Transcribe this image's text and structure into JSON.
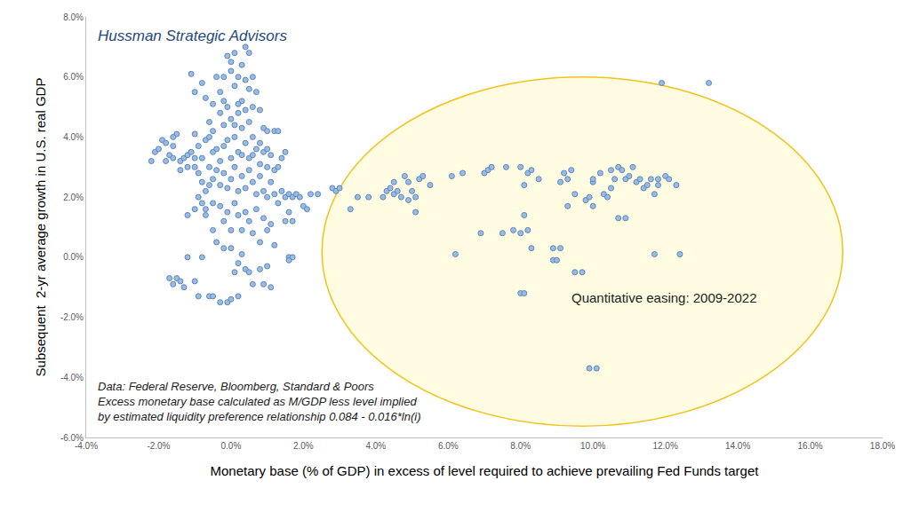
{
  "chart_data": {
    "type": "scatter",
    "marker": "circle",
    "color": "#9bbbe0",
    "grid": false,
    "xlabel": "Monetary base (% of GDP) in excess of level required to achieve prevailing Fed Funds target",
    "ylabel": "Subsequent  2-yr average growth in U.S. real GDP",
    "annotations": [
      {
        "text": "Hussman Strategic Advisors"
      },
      {
        "text": "Quantitative easing: 2009-2022"
      },
      {
        "text": [
          "Data: Federal Reserve, Bloomberg, Standard & Poors",
          "Excess monetary base calculated as M/GDP less level implied",
          "by estimated liquidity preference relationship 0.084 - 0.016*ln(i)"
        ]
      }
    ],
    "xlim": [
      -4,
      18
    ],
    "xticks": [
      {
        "value": -4,
        "label": "-4.0%"
      },
      {
        "value": -2,
        "label": "-2.0%"
      },
      {
        "value": 0,
        "label": "0.0%"
      },
      {
        "value": 2,
        "label": "2.0%"
      },
      {
        "value": 4,
        "label": "4.0%"
      },
      {
        "value": 6,
        "label": "6.0%"
      },
      {
        "value": 8,
        "label": "8.0%"
      },
      {
        "value": 10,
        "label": "10.0%"
      },
      {
        "value": 12,
        "label": "12.0%"
      },
      {
        "value": 14,
        "label": "14.0%"
      },
      {
        "value": 16,
        "label": "16.0%"
      },
      {
        "value": 18,
        "label": "18.0%"
      }
    ],
    "ylim": [
      -6,
      8
    ],
    "yticks": [
      {
        "value": -6,
        "label": "-6.0%"
      },
      {
        "value": -4,
        "label": "-4.0%"
      },
      {
        "value": -2,
        "label": "-2.0%"
      },
      {
        "value": 0,
        "label": "0.0%"
      },
      {
        "value": 2,
        "label": "2.0%"
      },
      {
        "value": 4,
        "label": "4.0%"
      },
      {
        "value": 6,
        "label": "6.0%"
      },
      {
        "value": 8,
        "label": "8.0%"
      }
    ],
    "x": [
      -2.2,
      -2.1,
      -2.0,
      -1.9,
      -1.8,
      -1.7,
      -1.6,
      -1.5,
      -1.6,
      -1.4,
      -1.3,
      -1.2,
      -1.1,
      -1.0,
      -1.7,
      -1.6,
      -1.5,
      -1.4,
      -1.3,
      -1.2,
      -1.0,
      -0.9,
      -0.8,
      -0.6,
      -0.5,
      -0.7,
      -0.5,
      -0.3,
      -0.1,
      0.0,
      0.2,
      0.2,
      0.4,
      0.5,
      0.6,
      0.8,
      1.0,
      1.1,
      0.9,
      1.6,
      1.6,
      1.7,
      -1.1,
      -1.0,
      -0.8,
      -0.7,
      -0.4,
      -0.3,
      -0.2,
      -0.1,
      0.0,
      0.0,
      0.1,
      0.2,
      0.3,
      0.3,
      0.4,
      0.5,
      0.5,
      0.6,
      0.4,
      -0.2,
      0.1,
      0.7,
      -0.5,
      0.2,
      0.6,
      0.5,
      0.8,
      0.9,
      1.0,
      1.2,
      1.3,
      1.5,
      1.4,
      -1.0,
      -0.9,
      -0.8,
      -0.7,
      -0.6,
      -0.5,
      -0.4,
      -0.3,
      -0.2,
      -0.1,
      0.0,
      0.1,
      0.2,
      0.3,
      0.4,
      0.5,
      0.6,
      0.7,
      0.8,
      0.9,
      1.0,
      1.1,
      1.2,
      -1.0,
      -0.9,
      -0.8,
      -0.7,
      -0.6,
      -0.5,
      -0.4,
      -0.3,
      -0.2,
      -0.1,
      0.0,
      0.1,
      0.2,
      0.3,
      0.4,
      0.5,
      0.6,
      0.7,
      0.8,
      0.9,
      1.0,
      1.1,
      1.2,
      1.3,
      1.4,
      1.5,
      1.6,
      1.7,
      1.8,
      1.9,
      2.0,
      2.1,
      2.2,
      2.4,
      1.6,
      1.7,
      1.5,
      -0.9,
      -0.7,
      -0.5,
      -0.3,
      -0.2,
      -0.1,
      0.0,
      0.1,
      0.2,
      0.3,
      0.4,
      0.5,
      0.6,
      0.7,
      0.8,
      0.9,
      1.0,
      1.1,
      1.2,
      -0.4,
      -0.2,
      0.0,
      0.1,
      0.3,
      -0.6,
      -0.3,
      0.2,
      0.4,
      0.1,
      -0.1,
      -1.2,
      -1.4,
      -1.6,
      -1.8,
      -1.2,
      -1.0,
      -0.8,
      -0.6,
      0.6,
      0.8,
      1.0,
      1.3,
      0.3,
      -0.5,
      0.0,
      -0.2,
      2.8,
      2.9,
      3.0,
      3.3,
      3.5,
      3.8,
      4.2,
      4.3,
      4.4,
      4.5,
      4.5,
      4.6,
      4.7,
      4.8,
      4.9,
      4.9,
      5.0,
      5.1,
      5.1,
      5.2,
      5.3,
      5.5,
      6.1,
      6.4,
      6.2,
      6.9,
      7.0,
      7.1,
      7.2,
      7.5,
      7.6,
      7.8,
      8.0,
      8.0,
      8.1,
      8.1,
      8.2,
      8.2,
      8.0,
      8.1,
      8.3,
      8.5,
      8.3,
      8.9,
      8.9,
      9.0,
      9.1,
      9.1,
      9.2,
      9.3,
      9.4,
      9.3,
      9.5,
      9.5,
      9.7,
      9.8,
      9.9,
      10.0,
      10.0,
      10.0,
      9.9,
      10.1,
      10.2,
      10.3,
      10.4,
      10.5,
      10.5,
      10.6,
      10.7,
      10.7,
      10.9,
      10.8,
      10.9,
      11.0,
      11.1,
      11.2,
      11.3,
      11.4,
      11.5,
      11.6,
      11.7,
      11.8,
      11.8,
      11.7,
      11.9,
      12.0,
      12.1,
      12.3,
      12.4,
      13.2
    ],
    "values": [
      3.2,
      3.5,
      3.6,
      3.9,
      3.8,
      3.4,
      3.7,
      4.1,
      4.0,
      3.2,
      3.3,
      3.4,
      3.5,
      3.3,
      -0.7,
      -0.9,
      -0.7,
      -0.8,
      -1.0,
      0.0,
      -0.8,
      -1.3,
      0.0,
      -1.3,
      -1.3,
      1.4,
      0.9,
      -1.5,
      -1.5,
      -1.4,
      -1.3,
      -0.2,
      -0.4,
      -0.5,
      -0.9,
      -0.4,
      -0.3,
      -1.0,
      -0.9,
      0.0,
      -0.1,
      0.0,
      6.1,
      5.5,
      5.8,
      5.3,
      6.0,
      5.5,
      6.0,
      6.7,
      6.5,
      6.2,
      6.8,
      6.0,
      6.4,
      5.2,
      7.0,
      6.8,
      5.6,
      6.0,
      5.9,
      5.2,
      5.7,
      5.5,
      5.1,
      5.1,
      5.0,
      4.5,
      4.9,
      4.3,
      4.2,
      4.2,
      4.2,
      3.5,
      3.3,
      4.1,
      3.7,
      3.3,
      3.9,
      4.5,
      4.2,
      3.6,
      4.8,
      4.4,
      3.9,
      4.6,
      4.0,
      3.5,
      4.3,
      3.8,
      3.3,
      4.0,
      3.6,
      3.1,
      3.5,
      3.0,
      3.4,
      2.9,
      3.0,
      2.8,
      2.5,
      2.2,
      3.0,
      2.6,
      2.9,
      2.4,
      2.8,
      2.3,
      2.6,
      3.0,
      2.2,
      2.7,
      2.3,
      2.9,
      2.5,
      2.1,
      2.7,
      2.2,
      2.0,
      2.5,
      2.1,
      1.8,
      2.2,
      2.0,
      2.1,
      2.0,
      2.1,
      2.0,
      1.7,
      1.6,
      2.1,
      2.1,
      1.5,
      1.2,
      1.2,
      2.0,
      1.6,
      1.8,
      1.7,
      1.2,
      1.5,
      0.9,
      1.8,
      1.4,
      0.9,
      1.5,
      1.2,
      0.8,
      1.6,
      0.5,
      1.3,
      0.9,
      1.1,
      0.4,
      0.5,
      0.3,
      0.3,
      -0.5,
      0.1,
      4.0,
      3.2,
      4.8,
      4.9,
      4.4,
      5.0,
      3.0,
      2.9,
      3.3,
      3.2,
      1.4,
      1.6,
      1.8,
      2.4,
      3.4,
      3.8,
      3.6,
      3.0,
      3.4,
      3.5,
      3.3,
      3.7,
      2.3,
      2.2,
      2.3,
      1.6,
      2.0,
      2.0,
      2.0,
      2.2,
      2.3,
      2.1,
      2.5,
      2.2,
      2.0,
      2.7,
      2.5,
      1.9,
      2.2,
      1.5,
      2.0,
      2.6,
      2.7,
      2.4,
      2.7,
      2.8,
      0.1,
      0.8,
      2.8,
      2.9,
      3.0,
      0.8,
      3.0,
      0.9,
      0.8,
      3.0,
      2.4,
      1.4,
      2.8,
      0.9,
      -1.2,
      -1.2,
      2.9,
      2.6,
      0.3,
      0.3,
      -0.1,
      -0.1,
      0.3,
      2.5,
      2.8,
      2.6,
      2.9,
      1.7,
      2.1,
      -0.5,
      -0.5,
      1.9,
      2.0,
      2.5,
      2.6,
      1.7,
      -3.7,
      -3.7,
      2.8,
      2.1,
      2.0,
      2.9,
      2.3,
      2.6,
      3.0,
      1.3,
      1.3,
      2.9,
      2.6,
      2.7,
      3.0,
      2.5,
      2.6,
      2.3,
      2.4,
      2.6,
      2.1,
      2.6,
      2.4,
      0.1,
      5.8,
      2.7,
      2.6,
      2.4,
      0.1,
      5.8
    ]
  }
}
